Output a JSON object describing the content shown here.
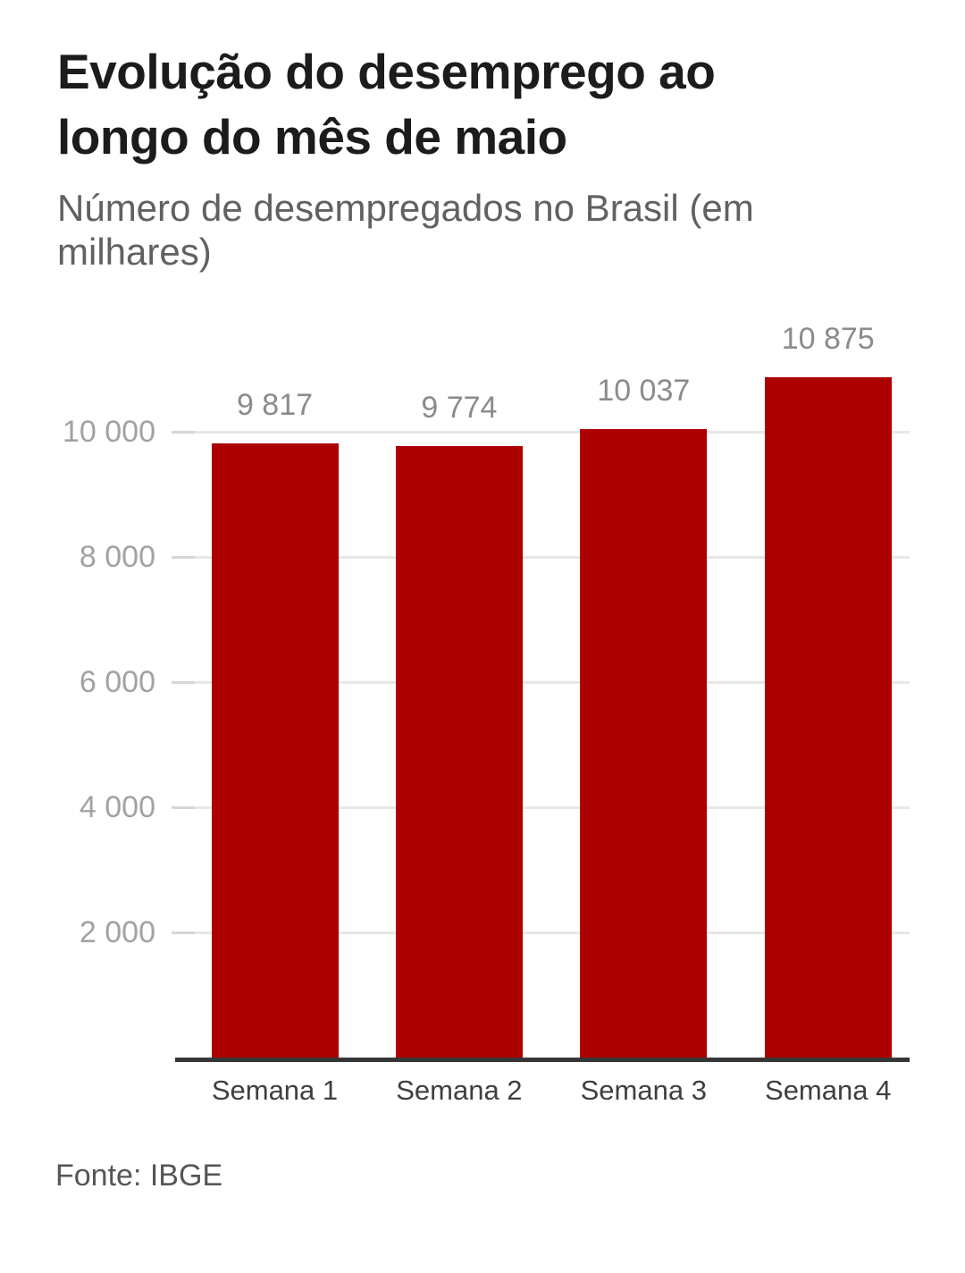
{
  "header": {
    "title_lines": [
      "Evolução do desemprego ao",
      "longo do mês de maio"
    ],
    "subtitle_lines": [
      "Número de desempregados no Brasil (em",
      "milhares)"
    ]
  },
  "footer": {
    "source": "Fonte: IBGE"
  },
  "chart_data": {
    "type": "bar",
    "title": "Evolução do desemprego ao longo do mês de maio",
    "subtitle": "Número de desempregados no Brasil (em milhares)",
    "categories": [
      "Semana 1",
      "Semana 2",
      "Semana 3",
      "Semana 4"
    ],
    "values": [
      9817,
      9774,
      10037,
      10875
    ],
    "value_labels": [
      "9 817",
      "9 774",
      "10 037",
      "10 875"
    ],
    "ylabel": "",
    "xlabel": "",
    "ytick_values": [
      2000,
      4000,
      6000,
      8000,
      10000
    ],
    "ytick_labels": [
      "2 000",
      "4 000",
      "6 000",
      "8 000",
      "10 000"
    ],
    "ylim": [
      0,
      11243
    ],
    "grid": true,
    "legend": "none",
    "source": "Fonte: IBGE"
  },
  "colors": {
    "background": "#ffffff",
    "title": "#1c1c1c",
    "subtitle": "#616161",
    "bar": "#ad0101",
    "gridline": "#e7e7e7",
    "axis_tick": "#d6d6d6",
    "axis_line": "#363636",
    "y_axis_label": "#a2a2a2",
    "value_label": "#8b8b8b",
    "category_label": "#3f3f3f",
    "source_text": "#565656"
  }
}
